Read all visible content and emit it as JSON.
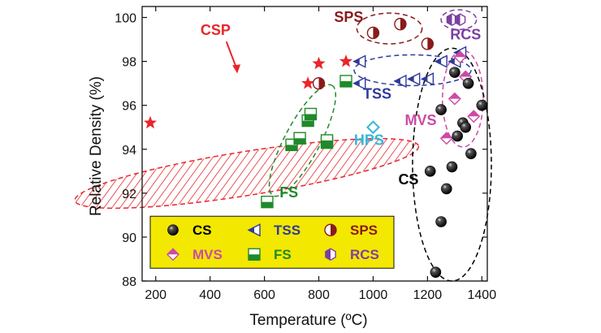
{
  "chart_data": {
    "type": "scatter",
    "xlabel": "Temperature (ºC)",
    "ylabel": "Relative Density (%)",
    "xlim": [
      150,
      1420
    ],
    "ylim": [
      88,
      100.5
    ],
    "x_ticks": [
      "200",
      "400",
      "600",
      "800",
      "1000",
      "1200",
      "1400"
    ],
    "y_ticks": [
      "88",
      "90",
      "92",
      "94",
      "96",
      "98",
      "100"
    ],
    "series": [
      {
        "name": "CSP",
        "marker": "star",
        "color": "#e8262b",
        "points": [
          [
            180,
            95.2
          ],
          [
            760,
            97.0
          ],
          [
            800,
            97.9
          ],
          [
            900,
            98.0
          ]
        ]
      },
      {
        "name": "SPS",
        "marker": "half-circle",
        "color": "#8b1a1a",
        "points": [
          [
            800,
            97.0
          ],
          [
            1000,
            99.3
          ],
          [
            1100,
            99.7
          ],
          [
            1200,
            98.8
          ]
        ]
      },
      {
        "name": "TSS",
        "marker": "left-triangle",
        "color": "#2e3a9a",
        "points": [
          [
            950,
            98.0
          ],
          [
            950,
            97.0
          ],
          [
            1100,
            97.1
          ],
          [
            1150,
            97.2
          ],
          [
            1200,
            97.2
          ],
          [
            1250,
            98.0
          ],
          [
            1300,
            98.0
          ],
          [
            1320,
            98.4
          ]
        ]
      },
      {
        "name": "FS",
        "marker": "half-square",
        "color": "#1f8a2a",
        "points": [
          [
            610,
            91.6
          ],
          [
            700,
            94.2
          ],
          [
            730,
            94.5
          ],
          [
            760,
            95.3
          ],
          [
            770,
            95.6
          ],
          [
            830,
            94.3
          ],
          [
            830,
            94.4
          ],
          [
            900,
            97.1
          ]
        ]
      },
      {
        "name": "HPS",
        "marker": "diamond-open",
        "color": "#35b7d8",
        "points": [
          [
            1000,
            95.0
          ]
        ]
      },
      {
        "name": "MVS",
        "marker": "half-diamond",
        "color": "#cc4aa5",
        "points": [
          [
            1270,
            94.5
          ],
          [
            1300,
            96.3
          ],
          [
            1320,
            98.2
          ],
          [
            1340,
            97.3
          ],
          [
            1370,
            95.5
          ]
        ]
      },
      {
        "name": "RCS",
        "marker": "half-hexagon",
        "color": "#7b3fa3",
        "points": [
          [
            1290,
            99.9
          ],
          [
            1320,
            99.9
          ]
        ]
      },
      {
        "name": "CS",
        "marker": "sphere",
        "color": "#000000",
        "points": [
          [
            1230,
            88.4
          ],
          [
            1250,
            90.7
          ],
          [
            1270,
            92.2
          ],
          [
            1290,
            93.2
          ],
          [
            1210,
            93.0
          ],
          [
            1250,
            95.8
          ],
          [
            1310,
            94.6
          ],
          [
            1330,
            95.2
          ],
          [
            1340,
            95.0
          ],
          [
            1360,
            93.8
          ],
          [
            1300,
            97.5
          ],
          [
            1350,
            97.0
          ],
          [
            1400,
            96.0
          ]
        ]
      }
    ],
    "group_labels": [
      {
        "text": "CSP",
        "x": 420,
        "y": 99.2,
        "color": "#e8262b"
      },
      {
        "text": "SPS",
        "x": 910,
        "y": 99.8,
        "color": "#8b1a1a"
      },
      {
        "text": "RCS",
        "x": 1340,
        "y": 99.0,
        "color": "#7b3fa3"
      },
      {
        "text": "TSS",
        "x": 1015,
        "y": 96.3,
        "color": "#2e3a9a"
      },
      {
        "text": "MVS",
        "x": 1175,
        "y": 95.1,
        "color": "#cc4aa5"
      },
      {
        "text": "HPS",
        "x": 985,
        "y": 94.2,
        "color": "#35b7d8"
      },
      {
        "text": "CS",
        "x": 1130,
        "y": 92.4,
        "color": "#000000"
      },
      {
        "text": "FS",
        "x": 690,
        "y": 91.8,
        "color": "#1f8a2a"
      }
    ],
    "legend": {
      "placement": "bottom-left",
      "background": "#f3e800",
      "entries": [
        {
          "name": "CS",
          "marker": "sphere",
          "color": "#000000"
        },
        {
          "name": "TSS",
          "marker": "left-triangle",
          "color": "#2e3a9a"
        },
        {
          "name": "SPS",
          "marker": "half-circle",
          "color": "#8b1a1a"
        },
        {
          "name": "MVS",
          "marker": "half-diamond",
          "color": "#cc4aa5"
        },
        {
          "name": "FS",
          "marker": "half-square",
          "color": "#1f8a2a"
        },
        {
          "name": "RCS",
          "marker": "half-hexagon",
          "color": "#7b3fa3"
        }
      ]
    }
  }
}
